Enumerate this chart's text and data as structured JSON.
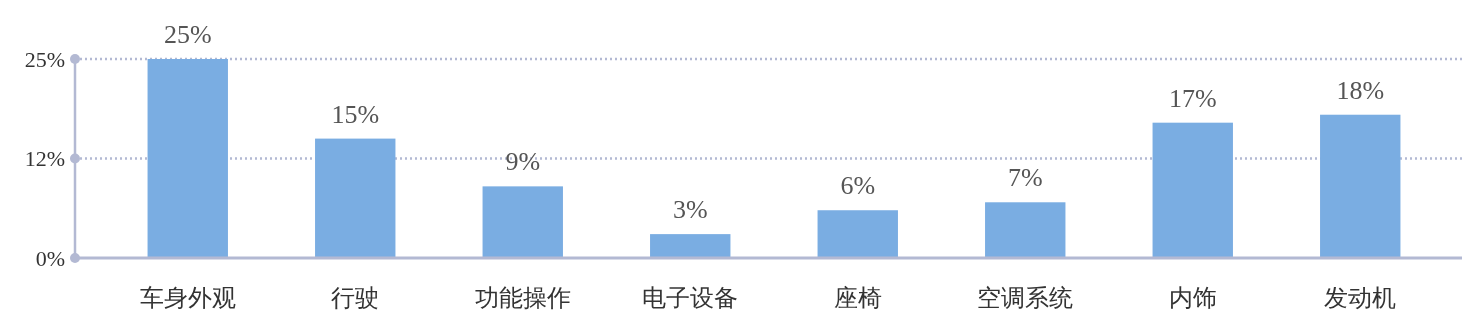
{
  "chart_data": {
    "type": "bar",
    "categories": [
      "车身外观",
      "行驶",
      "功能操作",
      "电子设备",
      "座椅",
      "空调系统",
      "内饰",
      "发动机"
    ],
    "values": [
      25,
      15,
      9,
      3,
      6,
      7,
      17,
      18
    ],
    "color": "#7aade2",
    "ylim": [
      0,
      25
    ],
    "yticks": [
      {
        "value": 0,
        "label": "0%"
      },
      {
        "value": 12.5,
        "label": "12%"
      },
      {
        "value": 25,
        "label": "25%"
      }
    ],
    "value_labels": [
      "25%",
      "15%",
      "9%",
      "3%",
      "6%",
      "7%",
      "17%",
      "18%"
    ],
    "grid": "y"
  }
}
